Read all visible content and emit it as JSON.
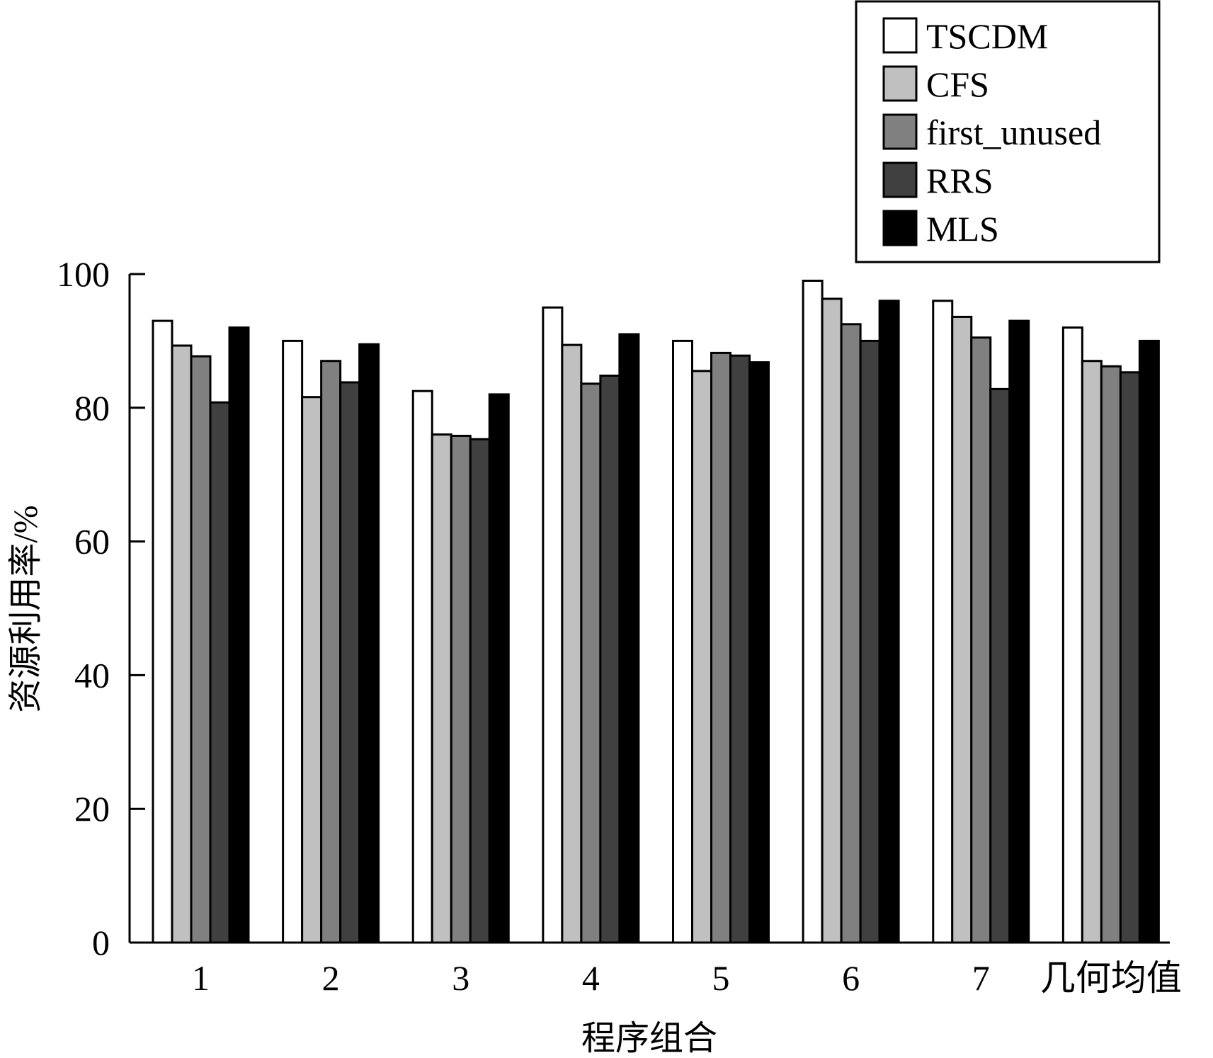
{
  "chart_data": {
    "type": "bar",
    "categories": [
      "1",
      "2",
      "3",
      "4",
      "5",
      "6",
      "7",
      "几何均值"
    ],
    "series": [
      {
        "name": "TSCDM",
        "color": "#ffffff",
        "values": [
          93.0,
          90.0,
          82.5,
          95.0,
          90.0,
          99.0,
          96.0,
          92.0
        ]
      },
      {
        "name": "CFS",
        "color": "#c0c0c0",
        "values": [
          89.3,
          81.6,
          76.0,
          89.4,
          85.5,
          96.3,
          93.6,
          87.0
        ]
      },
      {
        "name": "first_unused",
        "color": "#808080",
        "values": [
          87.7,
          87.0,
          75.8,
          83.6,
          88.2,
          92.5,
          90.5,
          86.2
        ]
      },
      {
        "name": "RRS",
        "color": "#404040",
        "values": [
          80.8,
          83.8,
          75.3,
          84.8,
          87.8,
          90.0,
          82.8,
          85.3
        ]
      },
      {
        "name": "MLS",
        "color": "#000000",
        "values": [
          92.0,
          89.5,
          82.0,
          91.0,
          86.8,
          96.0,
          93.0,
          90.0
        ]
      }
    ],
    "xlabel": "程序组合",
    "ylabel": "资源利用率/%",
    "ylim": [
      0,
      100
    ],
    "yticks": [
      0,
      20,
      40,
      60,
      80,
      100
    ],
    "grid": false,
    "legend_position": "top-right"
  }
}
